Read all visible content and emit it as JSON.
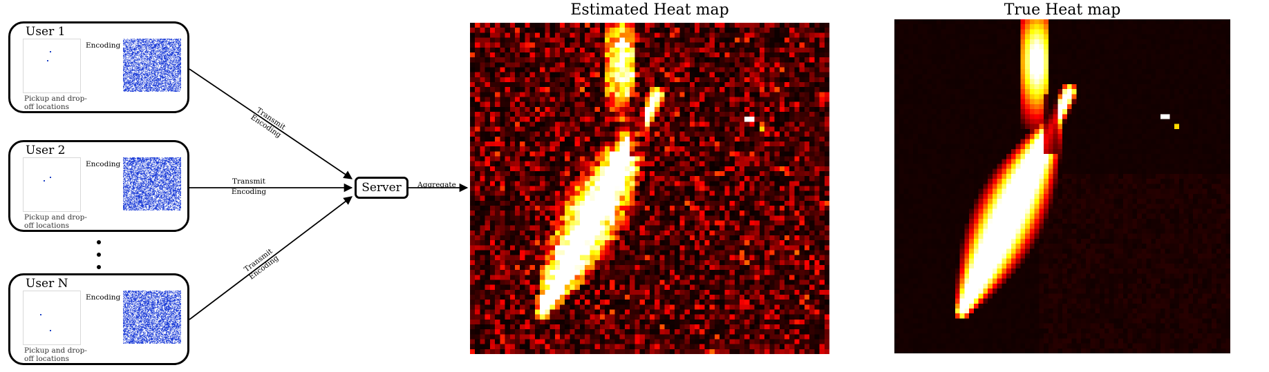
{
  "users": [
    {
      "title": "User 1",
      "caption_line1": "Pickup and drop-",
      "caption_line2": "off locations",
      "encode_label": "Encoding"
    },
    {
      "title": "User 2",
      "caption_line1": "Pickup and drop-",
      "caption_line2": "off locations",
      "encode_label": "Encoding"
    },
    {
      "title": "User N",
      "caption_line1": "Pickup and drop-",
      "caption_line2": "off locations",
      "encode_label": "Encoding"
    }
  ],
  "edges": {
    "transmit_line1": "Transmit",
    "transmit_line2": "Encoding",
    "aggregate": "Aggregate"
  },
  "server": {
    "label": "Server"
  },
  "heatmaps": {
    "estimated_title": "Estimated Heat map",
    "true_title": "True Heat map"
  },
  "colors": {
    "encoding_blue": "#1f3fd8",
    "heat_dark": "#0a0000",
    "heat_red": "#c00000",
    "heat_hot": "#ffffff"
  }
}
